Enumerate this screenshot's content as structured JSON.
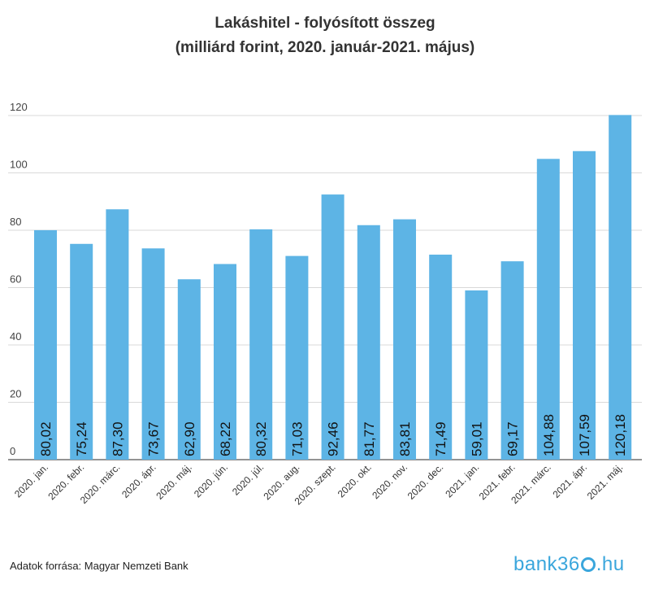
{
  "chart_data": {
    "type": "bar",
    "title_line1": "Lakáshitel - folyósított összeg",
    "title_line2": "(milliárd forint, 2020. január-2021. május)",
    "categories": [
      "2020. jan.",
      "2020. febr.",
      "2020. márc.",
      "2020. ápr.",
      "2020. máj.",
      "2020. jún.",
      "2020. júl.",
      "2020. aug.",
      "2020. szept.",
      "2020. okt.",
      "2020. nov.",
      "2020. dec.",
      "2021. jan.",
      "2021. febr.",
      "2021. márc.",
      "2021. ápr.",
      "2021. máj."
    ],
    "values": [
      80.02,
      75.24,
      87.3,
      73.67,
      62.9,
      68.22,
      80.32,
      71.03,
      92.46,
      81.77,
      83.81,
      71.49,
      59.01,
      69.17,
      104.88,
      107.59,
      120.18
    ],
    "value_labels": [
      "80,02",
      "75,24",
      "87,30",
      "73,67",
      "62,90",
      "68,22",
      "80,32",
      "71,03",
      "92,46",
      "81,77",
      "83,81",
      "71,49",
      "59,01",
      "69,17",
      "104,88",
      "107,59",
      "120,18"
    ],
    "yticks": [
      "0",
      "20",
      "40",
      "60",
      "80",
      "100",
      "120"
    ],
    "ylim": [
      0,
      120
    ],
    "grid": true,
    "bar_color": "#5db4e5",
    "grid_color": "#d9d9d9"
  },
  "footer": {
    "source": "Adatok forrása: Magyar Nemzeti Bank",
    "logo_prefix": "bank36",
    "logo_suffix": ".hu"
  }
}
